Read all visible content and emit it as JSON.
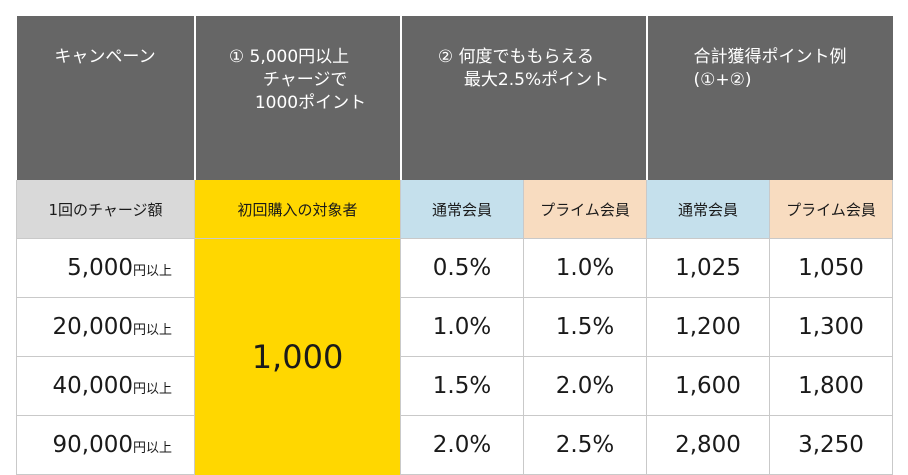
{
  "header": {
    "col1": "キャンペーン",
    "col2_line1": "① 5,000円以上",
    "col2_line2": "チャージで",
    "col2_line3": "1000ポイント",
    "col3_line1": "② 何度でももらえる",
    "col3_line2": "最大2.5%ポイント",
    "col4_line1": "合計獲得ポイント例",
    "col4_line2": "(①+②)"
  },
  "subheader": {
    "charge_amount": "1回のチャージ額",
    "first_purchase": "初回購入の対象者",
    "regular_member_1": "通常会員",
    "prime_member_1": "プライム会員",
    "regular_member_2": "通常会員",
    "prime_member_2": "プライム会員"
  },
  "bonus_points": "1,000",
  "rows": [
    {
      "amount": "5,000",
      "unit": "円以上",
      "regular_rate": "0.5%",
      "prime_rate": "1.0%",
      "regular_total": "1,025",
      "prime_total": "1,050"
    },
    {
      "amount": "20,000",
      "unit": "円以上",
      "regular_rate": "1.0%",
      "prime_rate": "1.5%",
      "regular_total": "1,200",
      "prime_total": "1,300"
    },
    {
      "amount": "40,000",
      "unit": "円以上",
      "regular_rate": "1.5%",
      "prime_rate": "2.0%",
      "regular_total": "1,600",
      "prime_total": "1,800"
    },
    {
      "amount": "90,000",
      "unit": "円以上",
      "regular_rate": "2.0%",
      "prime_rate": "2.5%",
      "regular_total": "2,800",
      "prime_total": "3,250"
    }
  ],
  "colors": {
    "header_bg": "#666666",
    "highlight_yellow": "#ffd700",
    "regular_blue": "#c5e0ec",
    "prime_peach": "#f8dcc0",
    "label_grey": "#d9d9d9"
  }
}
